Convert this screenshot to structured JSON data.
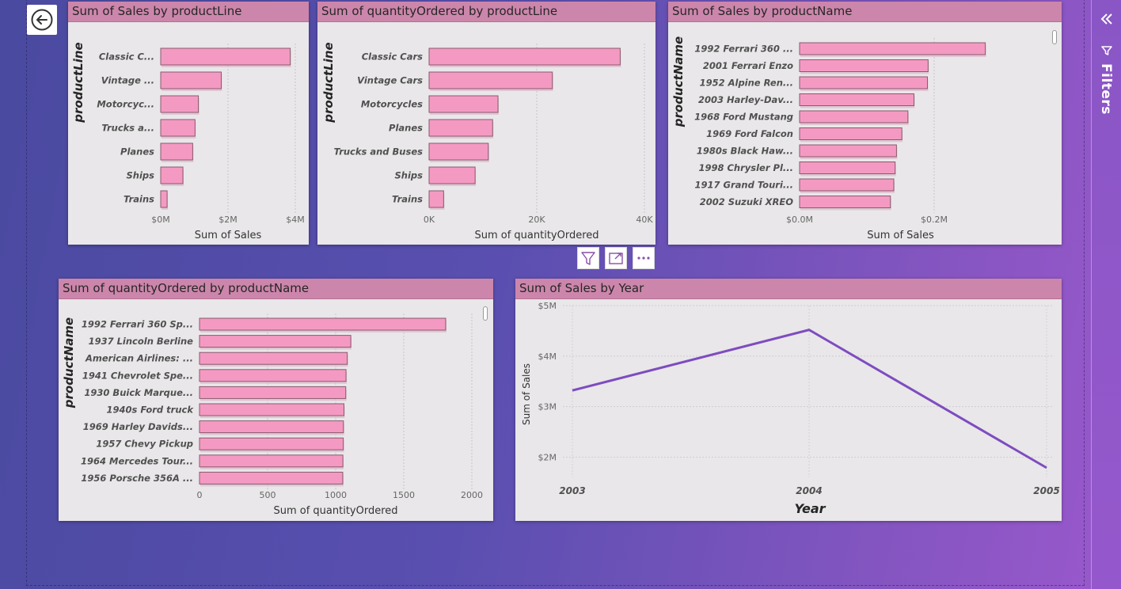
{
  "filters_pane": {
    "label": "Filters",
    "collapse_icon": "double-chevron-left-icon",
    "funnel_icon": "funnel-icon"
  },
  "back_button": {
    "icon": "back-arrow-icon"
  },
  "visual_header": {
    "buttons": [
      "filter-icon",
      "focus-mode-icon",
      "more-options-icon"
    ]
  },
  "colors": {
    "bar_fill": "#f49ac2",
    "bar_stroke": "#8a5a6f",
    "title_bar": "#cc86ab",
    "line": "#7e4cc0",
    "visual_bg": "#e9e7e9"
  },
  "visuals": {
    "v1": {
      "title": "Sum of Sales by productLine"
    },
    "v2": {
      "title": "Sum of quantityOrdered by productLine"
    },
    "v3": {
      "title": "Sum of Sales by productName"
    },
    "v4": {
      "title": "Sum of quantityOrdered by productName"
    },
    "v5": {
      "title": "Sum of Sales by Year"
    }
  },
  "chart_data": [
    {
      "id": "v1",
      "type": "bar",
      "orientation": "horizontal",
      "title": "Sum of Sales by productLine",
      "xlabel": "Sum of Sales",
      "ylabel": "productLine",
      "categories": [
        "Classic C...",
        "Vintage ...",
        "Motorcyc...",
        "Trucks a...",
        "Planes",
        "Ships",
        "Trains"
      ],
      "values": [
        3.85,
        1.8,
        1.12,
        1.02,
        0.95,
        0.66,
        0.19
      ],
      "unit": "$M",
      "xlim": [
        0,
        4
      ],
      "xticks": [
        {
          "v": 0,
          "label": "$0M"
        },
        {
          "v": 2,
          "label": "$2M"
        },
        {
          "v": 4,
          "label": "$4M"
        }
      ]
    },
    {
      "id": "v2",
      "type": "bar",
      "orientation": "horizontal",
      "title": "Sum of quantityOrdered by productLine",
      "xlabel": "Sum of quantityOrdered",
      "ylabel": "productLine",
      "categories": [
        "Classic Cars",
        "Vintage Cars",
        "Motorcycles",
        "Planes",
        "Trucks and Buses",
        "Ships",
        "Trains"
      ],
      "values": [
        35500,
        22900,
        12800,
        11800,
        11000,
        8550,
        2700
      ],
      "xlim": [
        0,
        40000
      ],
      "xticks": [
        {
          "v": 0,
          "label": "0K"
        },
        {
          "v": 20000,
          "label": "20K"
        },
        {
          "v": 40000,
          "label": "40K"
        }
      ]
    },
    {
      "id": "v3",
      "type": "bar",
      "orientation": "horizontal",
      "title": "Sum of Sales by productName",
      "xlabel": "Sum of Sales",
      "ylabel": "productName",
      "categories": [
        "1992 Ferrari 360 ...",
        "2001 Ferrari Enzo",
        "1952 Alpine Ren...",
        "2003 Harley-Dav...",
        "1968 Ford Mustang",
        "1969 Ford Falcon",
        "1980s Black Haw...",
        "1998 Chrysler Pl...",
        "1917 Grand Touri...",
        "2002 Suzuki XREO"
      ],
      "values": [
        0.276,
        0.191,
        0.19,
        0.17,
        0.161,
        0.152,
        0.144,
        0.142,
        0.14,
        0.135
      ],
      "unit": "$M",
      "xlim": [
        0,
        0.3
      ],
      "xticks": [
        {
          "v": 0,
          "label": "$0.0M"
        },
        {
          "v": 0.2,
          "label": "$0.2M"
        }
      ]
    },
    {
      "id": "v4",
      "type": "bar",
      "orientation": "horizontal",
      "title": "Sum of quantityOrdered by productName",
      "xlabel": "Sum of quantityOrdered",
      "ylabel": "productName",
      "categories": [
        "1992 Ferrari 360 Sp...",
        "1937 Lincoln Berline",
        "American Airlines: ...",
        "1941 Chevrolet Spe...",
        "1930 Buick Marque...",
        "1940s Ford truck",
        "1969 Harley Davids...",
        "1957 Chevy Pickup",
        "1964 Mercedes Tour...",
        "1956 Porsche 356A ..."
      ],
      "values": [
        1808,
        1111,
        1085,
        1076,
        1074,
        1061,
        1057,
        1056,
        1053,
        1052
      ],
      "xlim": [
        0,
        2000
      ],
      "xticks": [
        {
          "v": 0,
          "label": "0"
        },
        {
          "v": 500,
          "label": "500"
        },
        {
          "v": 1000,
          "label": "1000"
        },
        {
          "v": 1500,
          "label": "1500"
        },
        {
          "v": 2000,
          "label": "2000"
        }
      ]
    },
    {
      "id": "v5",
      "type": "line",
      "title": "Sum of Sales by Year",
      "xlabel": "Year",
      "ylabel": "Sum of Sales",
      "x": [
        "2003",
        "2004",
        "2005"
      ],
      "values": [
        3.32,
        4.52,
        1.79
      ],
      "unit": "$M",
      "ylim": [
        1.6,
        5.0
      ],
      "yticks": [
        {
          "v": 2,
          "label": "$2M"
        },
        {
          "v": 3,
          "label": "$3M"
        },
        {
          "v": 4,
          "label": "$4M"
        },
        {
          "v": 5,
          "label": "$5M"
        }
      ]
    }
  ]
}
